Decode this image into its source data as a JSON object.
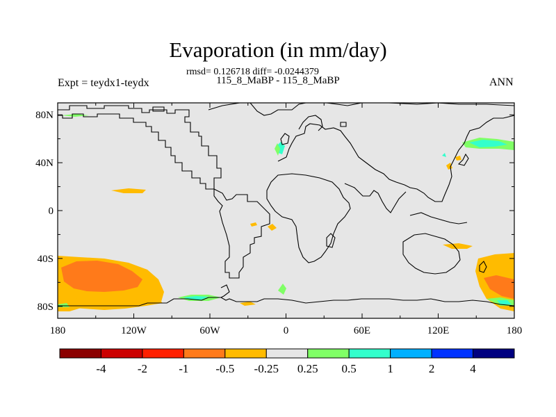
{
  "chart_data": {
    "type": "heatmap",
    "title": "Evaporation (in mm/day)",
    "stats": "rmsd= 0.126718 diff= -0.0244379",
    "experiments": "115_8_MaBP - 115_8_MaBP",
    "left_label": "Expt = teydx1-teydx",
    "right_label": "ANN",
    "x_range": [
      -180,
      180
    ],
    "y_range": [
      -90,
      90
    ],
    "x_ticks": [
      {
        "value": -180,
        "label": "180"
      },
      {
        "value": -120,
        "label": "120W"
      },
      {
        "value": -60,
        "label": "60W"
      },
      {
        "value": 0,
        "label": "0"
      },
      {
        "value": 60,
        "label": "60E"
      },
      {
        "value": 120,
        "label": "120E"
      },
      {
        "value": 180,
        "label": "180"
      }
    ],
    "y_ticks": [
      {
        "value": 80,
        "label": "80N"
      },
      {
        "value": 40,
        "label": "40N"
      },
      {
        "value": 0,
        "label": "0"
      },
      {
        "value": -40,
        "label": "40S"
      },
      {
        "value": -80,
        "label": "80S"
      }
    ],
    "colorbar": {
      "levels": [
        "-4",
        "-2",
        "-1",
        "-0.5",
        "-0.25",
        "0.25",
        "0.5",
        "1",
        "2",
        "4"
      ],
      "colors": [
        "#8b0000",
        "#cc0000",
        "#ff2000",
        "#ff7a1a",
        "#ffbb00",
        "#e6e6e6",
        "#80ff66",
        "#33ffcc",
        "#00b0ff",
        "#0033ff",
        "#000080"
      ]
    },
    "background_color": "#e6e6e6",
    "anomalies": [
      {
        "region": "South Pacific (50S-75S, 180-140W)",
        "min_class": "-1 to -0.5",
        "outer_class": "-0.5 to -0.25"
      },
      {
        "region": "South Pacific near Antarctica (75S-85S, 160W-100W)",
        "class": "-0.5 to -0.25"
      },
      {
        "region": "Southeast of New Zealand (55S-75S, 150E-180)",
        "class": "-1 to -0.5"
      },
      {
        "region": "Tropical Pacific (~12N, 130W-110W)",
        "class": "-0.5 to -0.25"
      },
      {
        "region": "North Pacific east of Japan (~45N, 150E-180)",
        "class": "0.5 to 1"
      },
      {
        "region": "Weddell Sea (~75S, 90W-70W)",
        "class": "0.5 to 1"
      },
      {
        "region": "Western Europe (~45N, 5W)",
        "class": "0.5 to 1"
      }
    ]
  }
}
